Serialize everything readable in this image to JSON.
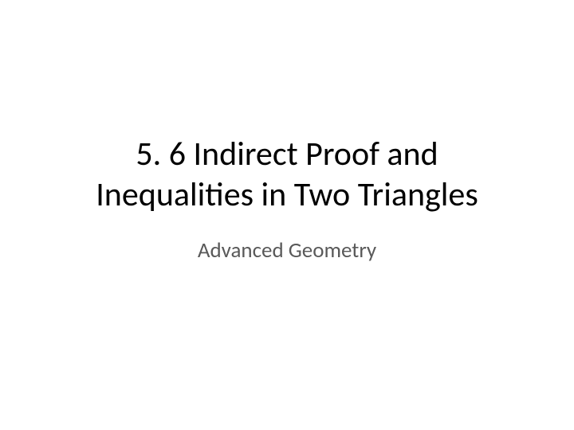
{
  "slide": {
    "title_line1": "5. 6  Indirect Proof and",
    "title_line2": "Inequalities in Two Triangles",
    "subtitle": "Advanced Geometry",
    "background_color": "#ffffff",
    "title_color": "#000000",
    "subtitle_color": "#595959",
    "title_fontsize": 42,
    "subtitle_fontsize": 27
  }
}
